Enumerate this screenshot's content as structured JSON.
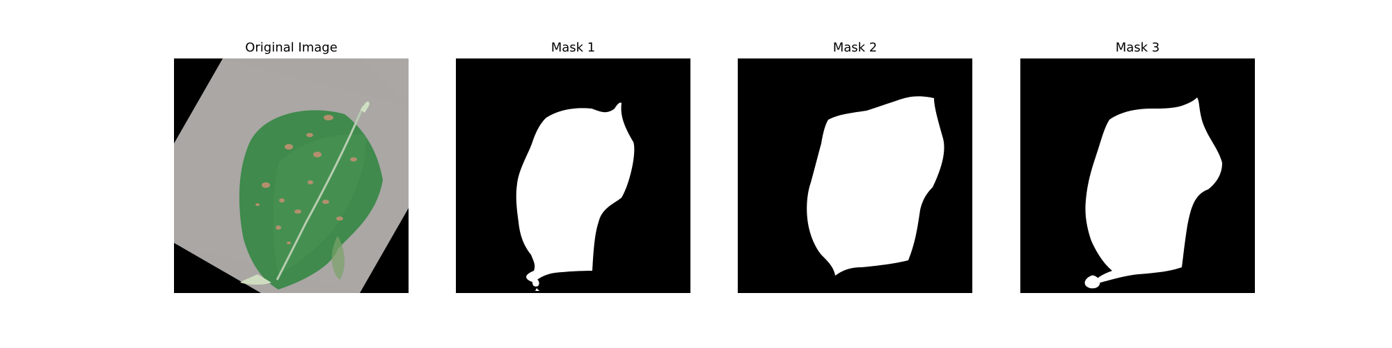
{
  "panels": [
    {
      "title": "Original Image",
      "kind": "photo",
      "description_icon": "leaf-photo"
    },
    {
      "title": "Mask 1",
      "kind": "mask"
    },
    {
      "title": "Mask 2",
      "kind": "mask"
    },
    {
      "title": "Mask 3",
      "kind": "mask"
    }
  ],
  "colors": {
    "background": "#ffffff",
    "mask_background": "#000000",
    "mask_foreground": "#ffffff",
    "card_gray": "#a9a6a4",
    "leaf_green": "#3f8a4c",
    "leaf_dark": "#2f6e3b",
    "spot_brown": "#b48f6e"
  }
}
